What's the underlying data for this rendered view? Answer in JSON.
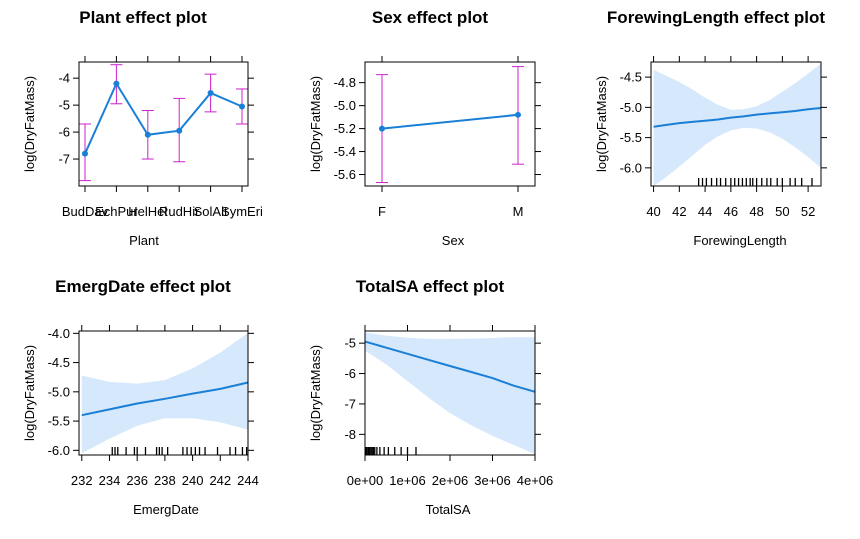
{
  "colors": {
    "line": "#1a7fd6",
    "band": "#d6e8fb",
    "error_bar": "#cc22cc",
    "axis": "#000000"
  },
  "chart_data": [
    {
      "type": "line",
      "title": "Plant effect plot",
      "xlabel": "Plant",
      "ylabel": "log(DryFatMass)",
      "categories": [
        "BudDav",
        "EchPur",
        "HelHel",
        "RudHir",
        "SolAlt",
        "SymEri"
      ],
      "values": [
        -6.8,
        -4.2,
        -6.1,
        -5.95,
        -4.55,
        -5.05
      ],
      "lower": [
        -7.8,
        -4.95,
        -7.0,
        -7.1,
        -5.25,
        -5.7
      ],
      "upper": [
        -5.7,
        -3.5,
        -5.2,
        -4.75,
        -3.85,
        -4.4
      ],
      "ylim": [
        -8.0,
        -3.4
      ],
      "yticks": [
        -7,
        -6,
        -5,
        -4
      ],
      "ytick_labels": [
        "-7",
        "-6",
        "-5",
        "-4"
      ],
      "interval": "error_bars",
      "grid": false
    },
    {
      "type": "line",
      "title": "Sex effect plot",
      "xlabel": "Sex",
      "ylabel": "log(DryFatMass)",
      "categories": [
        "F",
        "M"
      ],
      "values": [
        -5.2,
        -5.08
      ],
      "lower": [
        -5.67,
        -5.51
      ],
      "upper": [
        -4.73,
        -4.66
      ],
      "ylim": [
        -5.7,
        -4.62
      ],
      "yticks": [
        -5.6,
        -5.4,
        -5.2,
        -5.0,
        -4.8
      ],
      "ytick_labels": [
        "-5.6",
        "-5.4",
        "-5.2",
        "-5.0",
        "-4.8"
      ],
      "interval": "error_bars",
      "grid": false
    },
    {
      "type": "line",
      "title": "ForewingLength effect plot",
      "xlabel": "ForewingLength",
      "ylabel": "log(DryFatMass)",
      "x": [
        40,
        41,
        42,
        43,
        44,
        45,
        46,
        47,
        48,
        49,
        50,
        51,
        52,
        53
      ],
      "values": [
        -5.32,
        -5.29,
        -5.26,
        -5.24,
        -5.22,
        -5.2,
        -5.17,
        -5.15,
        -5.12,
        -5.1,
        -5.08,
        -5.06,
        -5.03,
        -5.01
      ],
      "lower": [
        -6.3,
        -6.15,
        -5.98,
        -5.8,
        -5.62,
        -5.48,
        -5.38,
        -5.34,
        -5.35,
        -5.41,
        -5.52,
        -5.66,
        -5.82,
        -6.0
      ],
      "upper": [
        -4.38,
        -4.48,
        -4.58,
        -4.7,
        -4.84,
        -4.96,
        -5.04,
        -5.03,
        -4.98,
        -4.88,
        -4.74,
        -4.6,
        -4.44,
        -4.28
      ],
      "xlim": [
        39.8,
        53.0
      ],
      "ylim": [
        -6.3,
        -4.25
      ],
      "xticks": [
        40,
        42,
        44,
        46,
        48,
        50,
        52
      ],
      "xtick_labels": [
        "40",
        "42",
        "44",
        "46",
        "48",
        "50",
        "52"
      ],
      "yticks": [
        -6.0,
        -5.5,
        -5.0,
        -4.5
      ],
      "ytick_labels": [
        "-6.0",
        "-5.5",
        "-5.0",
        "-4.5"
      ],
      "rug": [
        43.5,
        43.8,
        44.1,
        44.5,
        44.9,
        45.2,
        45.6,
        46.0,
        46.3,
        46.6,
        46.9,
        47.2,
        47.5,
        47.7,
        48.0,
        48.4,
        48.8,
        49.1,
        49.6,
        50.0,
        50.6,
        51.0,
        51.5,
        52.3
      ],
      "interval": "band",
      "grid": false
    },
    {
      "type": "line",
      "title": "EmergDate effect plot",
      "xlabel": "EmergDate",
      "ylabel": "log(DryFatMass)",
      "x": [
        232,
        234,
        236,
        238,
        240,
        242,
        244
      ],
      "values": [
        -5.4,
        -5.3,
        -5.2,
        -5.12,
        -5.03,
        -4.95,
        -4.84
      ],
      "lower": [
        -6.05,
        -5.8,
        -5.58,
        -5.45,
        -5.45,
        -5.52,
        -5.65
      ],
      "upper": [
        -4.72,
        -4.83,
        -4.86,
        -4.8,
        -4.6,
        -4.33,
        -3.99
      ],
      "xlim": [
        231.8,
        244.0
      ],
      "ylim": [
        -6.08,
        -3.96
      ],
      "xticks": [
        232,
        234,
        236,
        238,
        240,
        242,
        244
      ],
      "xtick_labels": [
        "232",
        "234",
        "236",
        "238",
        "240",
        "242",
        "244"
      ],
      "yticks": [
        -6.0,
        -5.5,
        -5.0,
        -4.5,
        -4.0
      ],
      "ytick_labels": [
        "-6.0",
        "-5.5",
        "-5.0",
        "-4.5",
        "-4.0"
      ],
      "rug": [
        234.2,
        234.4,
        234.6,
        235.2,
        235.8,
        236.0,
        236.6,
        237.4,
        237.6,
        237.8,
        238.2,
        239.3,
        239.6,
        239.9,
        240.2,
        240.5,
        240.9,
        241.8,
        242.7,
        243.1,
        243.6,
        243.9
      ],
      "interval": "band",
      "grid": false
    },
    {
      "type": "line",
      "title": "TotalSA effect plot",
      "xlabel": "TotalSA",
      "ylabel": "log(DryFatMass)",
      "x": [
        0,
        500000,
        1000000,
        1500000,
        2000000,
        2500000,
        3000000,
        3500000,
        4000000
      ],
      "values": [
        -4.95,
        -5.15,
        -5.35,
        -5.55,
        -5.75,
        -5.95,
        -6.15,
        -6.4,
        -6.6
      ],
      "lower": [
        -5.25,
        -5.7,
        -6.25,
        -6.8,
        -7.3,
        -7.7,
        -8.05,
        -8.35,
        -8.65
      ],
      "upper": [
        -4.65,
        -4.75,
        -4.82,
        -4.86,
        -4.86,
        -4.85,
        -4.83,
        -4.8,
        -4.8
      ],
      "xlim": [
        0,
        4000000
      ],
      "ylim": [
        -8.68,
        -4.6
      ],
      "xticks": [
        0,
        1000000,
        2000000,
        3000000,
        4000000
      ],
      "xtick_labels": [
        "0e+00",
        "1e+06",
        "2e+06",
        "3e+06",
        "4e+06"
      ],
      "yticks": [
        -8,
        -7,
        -6,
        -5
      ],
      "ytick_labels": [
        "-8",
        "-7",
        "-6",
        "-5"
      ],
      "rug": [
        20000,
        50000,
        80000,
        110000,
        140000,
        170000,
        200000,
        230000,
        280000,
        350000,
        450000,
        550000,
        700000,
        850000,
        1000000,
        1200000
      ],
      "interval": "band",
      "grid": false
    }
  ]
}
